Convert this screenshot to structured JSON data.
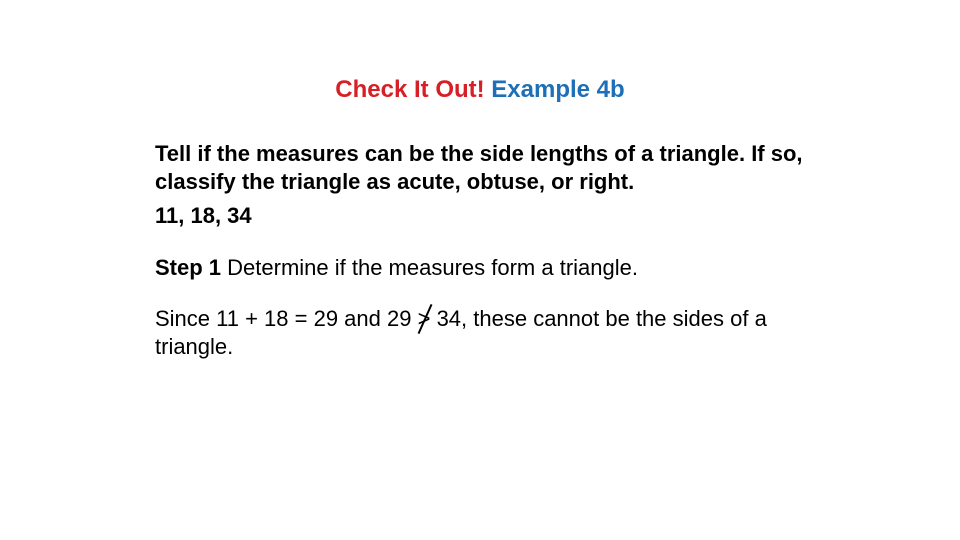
{
  "colors": {
    "red": "#d61f26",
    "blue": "#1d6fb7",
    "text": "#000000",
    "background": "#ffffff"
  },
  "typography": {
    "family": "Verdana",
    "title_fontsize": 24,
    "body_fontsize": 22,
    "title_weight": 900,
    "bold_weight": 700
  },
  "title": {
    "part1": "Check It Out! ",
    "part2": "Example 4b"
  },
  "prompt": "Tell if the measures can be the side lengths of a triangle. If so, classify the triangle as acute, obtuse, or right.",
  "values": "11, 18, 34",
  "step": {
    "label": "Step 1",
    "text": " Determine if the measures form a triangle."
  },
  "explanation": {
    "pre": "Since 11 + 18 = 29 and 29 ",
    "symbol": ">",
    "post": " 34, these cannot be the sides of a triangle."
  }
}
